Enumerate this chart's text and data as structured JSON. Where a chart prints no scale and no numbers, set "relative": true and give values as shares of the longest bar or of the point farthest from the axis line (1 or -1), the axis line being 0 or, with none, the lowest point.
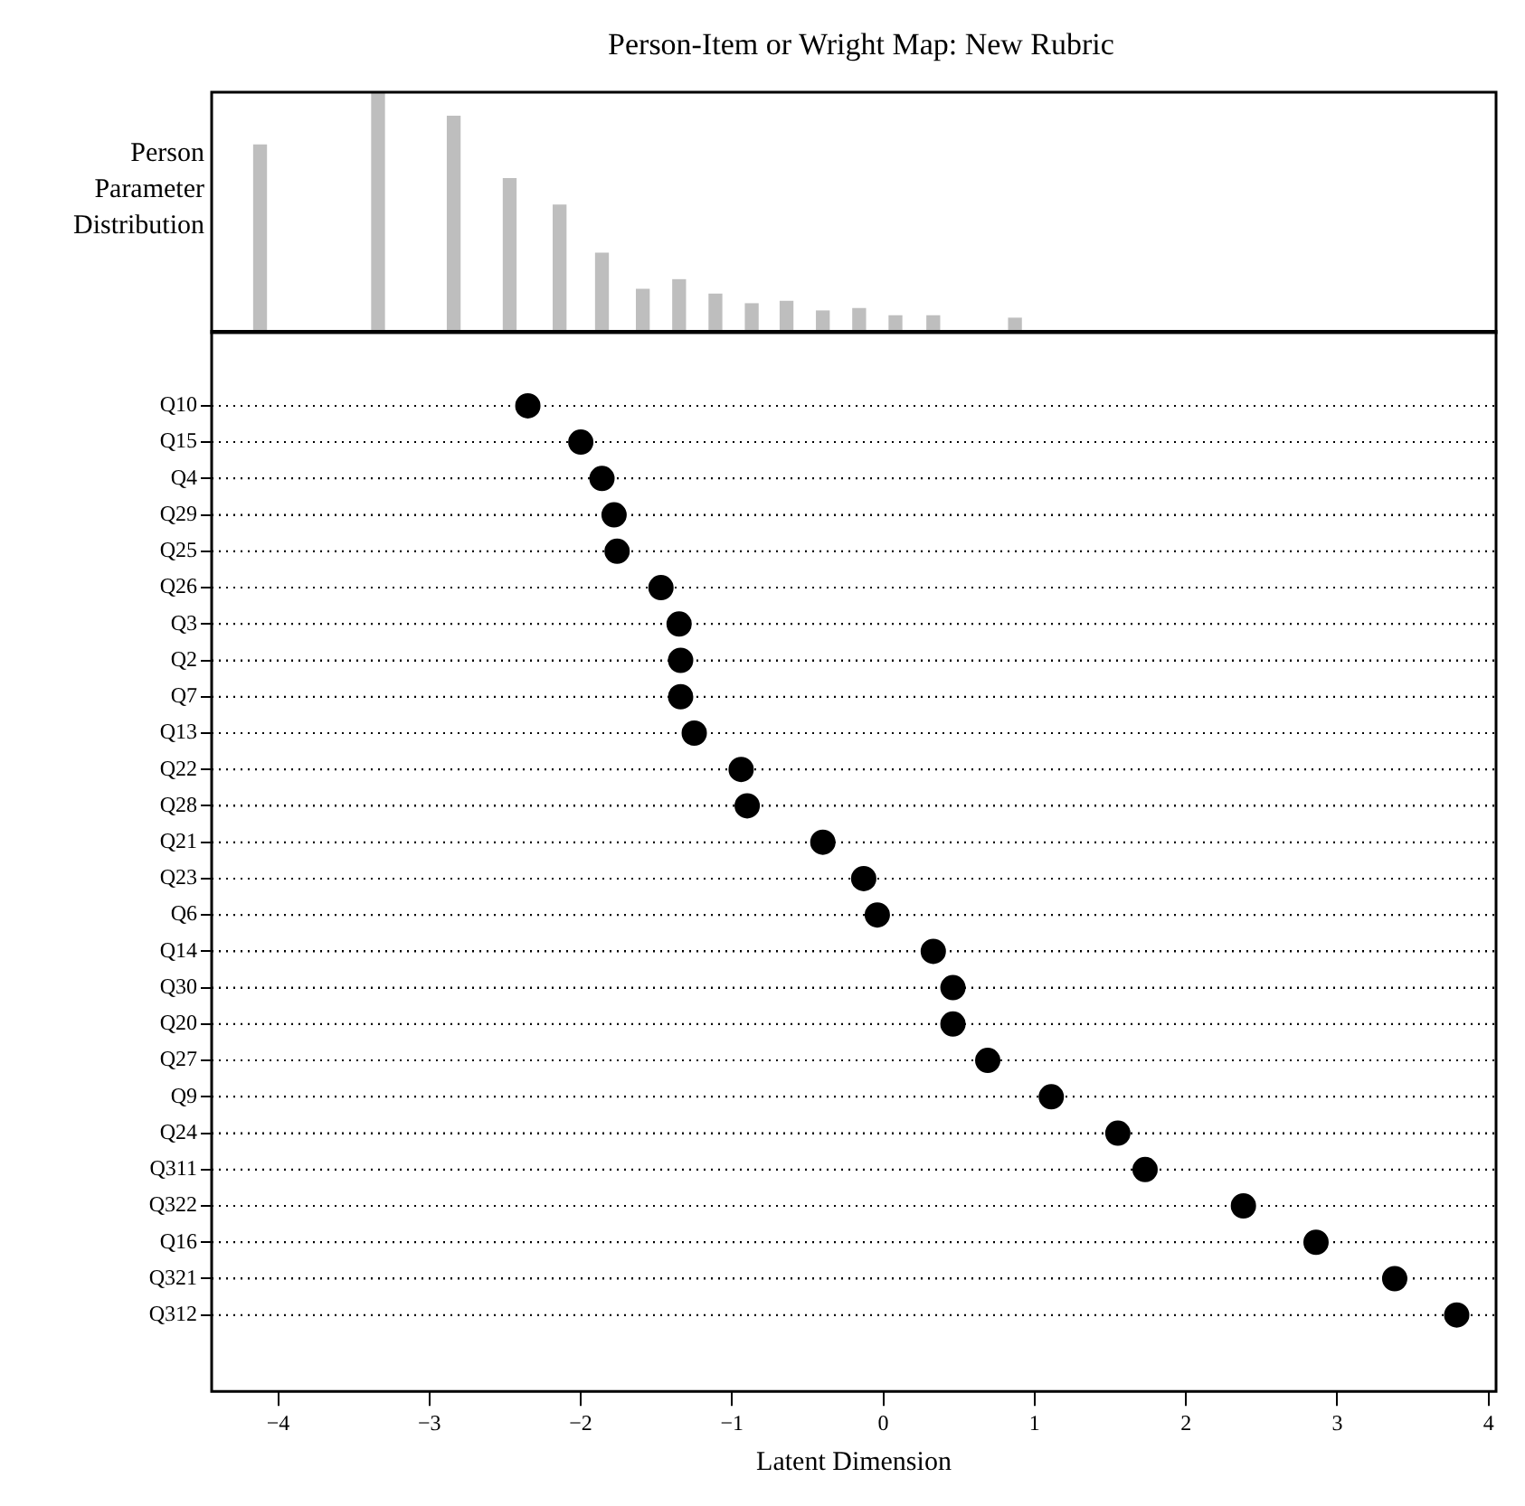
{
  "chart_data": [
    {
      "type": "bar",
      "title": "Person-Item or Wright Map: New Rubric",
      "ylabel": "Person Parameter Distribution",
      "relative": true,
      "color": "#bebebe",
      "tick_labels": false,
      "xlim": [
        -4.44,
        4.05
      ],
      "x": [
        -4.12,
        -3.34,
        -2.84,
        -2.47,
        -2.14,
        -1.86,
        -1.59,
        -1.35,
        -1.11,
        -0.87,
        -0.64,
        -0.4,
        -0.16,
        0.08,
        0.33,
        0.87
      ],
      "values": [
        0.78,
        1,
        0.9,
        0.64,
        0.53,
        0.33,
        0.18,
        0.22,
        0.16,
        0.12,
        0.13,
        0.09,
        0.1,
        0.07,
        0.07,
        0.06
      ]
    },
    {
      "type": "scatter",
      "orientation": "horizontal",
      "marker": "circle",
      "color": "#000000",
      "grid": "y",
      "line_style": "dotted",
      "xlabel": "Latent Dimension",
      "xlim": [
        -4.44,
        4.05
      ],
      "xticks": [
        {
          "value": -4,
          "label": "−4"
        },
        {
          "value": -3,
          "label": "−3"
        },
        {
          "value": -2,
          "label": "−2"
        },
        {
          "value": -1,
          "label": "−1"
        },
        0,
        1,
        2,
        3,
        4
      ],
      "categories": [
        "Q10",
        "Q15",
        "Q4",
        "Q29",
        "Q25",
        "Q26",
        "Q3",
        "Q2",
        "Q7",
        "Q13",
        "Q22",
        "Q28",
        "Q21",
        "Q23",
        "Q6",
        "Q14",
        "Q30",
        "Q20",
        "Q27",
        "Q9",
        "Q24",
        "Q311",
        "Q322",
        "Q16",
        "Q321",
        "Q312"
      ],
      "values": [
        -2.35,
        -2.0,
        -1.86,
        -1.78,
        -1.76,
        -1.47,
        -1.35,
        -1.34,
        -1.34,
        -1.25,
        -0.94,
        -0.9,
        -0.4,
        -0.13,
        -0.04,
        0.33,
        0.46,
        0.46,
        0.69,
        1.11,
        1.55,
        1.73,
        2.38,
        2.86,
        3.38,
        3.79
      ]
    }
  ]
}
